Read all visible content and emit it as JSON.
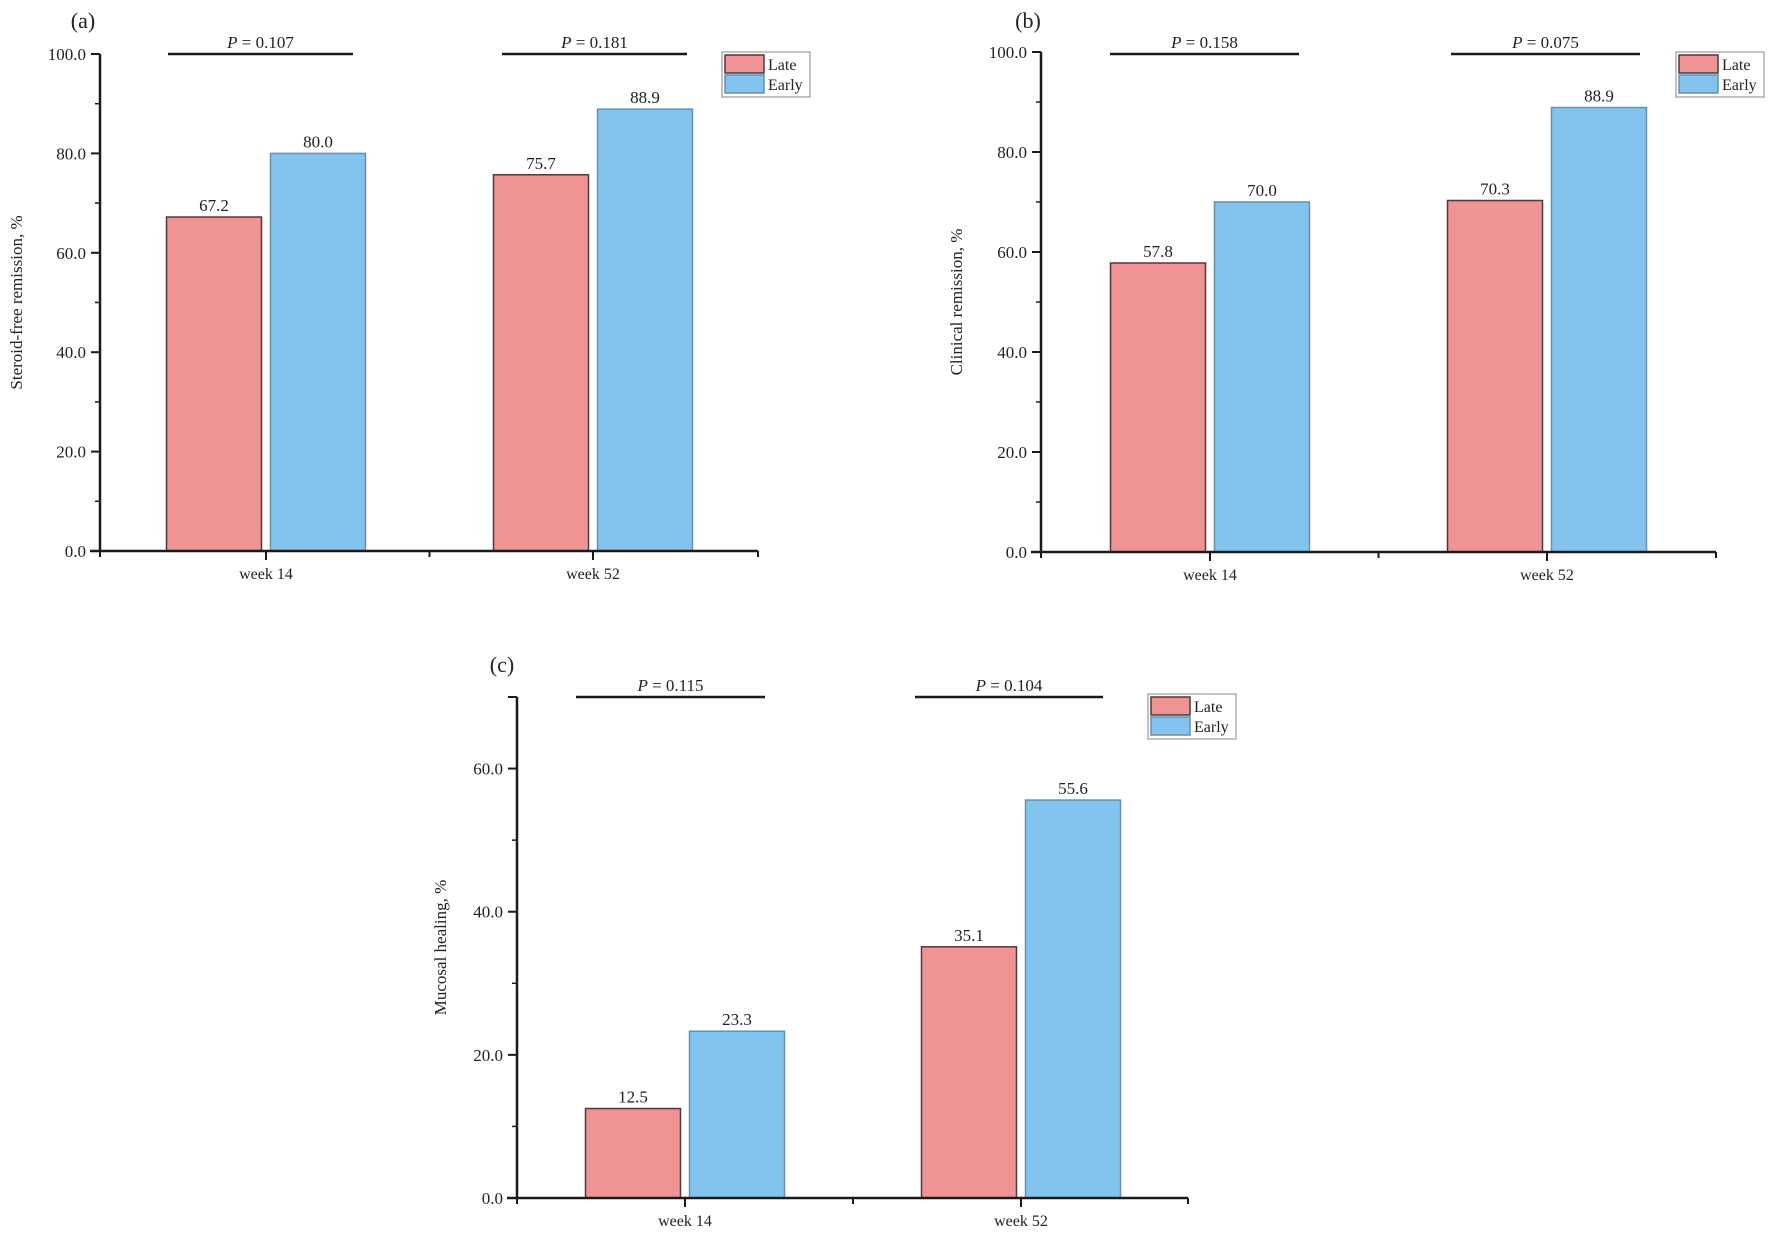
{
  "colors": {
    "late": "#F09394",
    "early": "#82C4EE",
    "late_border": "#4a3a3a",
    "early_border": "#6a8fa8",
    "axis": "#1a1a1a"
  },
  "legend": {
    "items": [
      "Late",
      "Early"
    ]
  },
  "chart_data": [
    {
      "type": "bar",
      "panel": "(a)",
      "title": "",
      "xlabel": "",
      "ylabel": "Steroid-free remission, %",
      "ylim": [
        0,
        100
      ],
      "yticks": [
        "0.0",
        "20.0",
        "40.0",
        "60.0",
        "80.0",
        "100.0"
      ],
      "ytick_values": [
        0,
        20,
        40,
        60,
        80,
        100
      ],
      "categories": [
        "week 14",
        "week 52"
      ],
      "series": [
        {
          "name": "Late",
          "values": [
            67.2,
            75.7
          ],
          "labels": [
            "67.2",
            "75.7"
          ]
        },
        {
          "name": "Early",
          "values": [
            80.0,
            88.9
          ],
          "labels": [
            "80.0",
            "88.9"
          ]
        }
      ],
      "annotations": [
        "P = 0.107",
        "P = 0.181"
      ],
      "p_values": [
        {
          "prefix": "P",
          "text": " = 0.107"
        },
        {
          "prefix": "P",
          "text": " = 0.181"
        }
      ],
      "legend_position": "top-right",
      "grid": false
    },
    {
      "type": "bar",
      "panel": "(b)",
      "title": "",
      "xlabel": "",
      "ylabel": "Clinical remission, %",
      "ylim": [
        0,
        100
      ],
      "yticks": [
        "0.0",
        "20.0",
        "40.0",
        "60.0",
        "80.0",
        "100.0"
      ],
      "ytick_values": [
        0,
        20,
        40,
        60,
        80,
        100
      ],
      "categories": [
        "week 14",
        "week 52"
      ],
      "series": [
        {
          "name": "Late",
          "values": [
            57.8,
            70.3
          ],
          "labels": [
            "57.8",
            "70.3"
          ]
        },
        {
          "name": "Early",
          "values": [
            70.0,
            88.9
          ],
          "labels": [
            "70.0",
            "88.9"
          ]
        }
      ],
      "annotations": [
        "P = 0.158",
        "P = 0.075"
      ],
      "p_values": [
        {
          "prefix": "P",
          "text": " = 0.158"
        },
        {
          "prefix": "P",
          "text": " = 0.075"
        }
      ],
      "legend_position": "top-right",
      "grid": false
    },
    {
      "type": "bar",
      "panel": "(c)",
      "title": "",
      "xlabel": "",
      "ylabel": "Mucosal healing, %",
      "ylim": [
        0,
        70
      ],
      "yticks": [
        "0.0",
        "20.0",
        "40.0",
        "60.0"
      ],
      "ytick_values": [
        0,
        20,
        40,
        60
      ],
      "categories": [
        "week 14",
        "week 52"
      ],
      "series": [
        {
          "name": "Late",
          "values": [
            12.5,
            35.1
          ],
          "labels": [
            "12.5",
            "35.1"
          ]
        },
        {
          "name": "Early",
          "values": [
            23.3,
            55.6
          ],
          "labels": [
            "23.3",
            "55.6"
          ]
        }
      ],
      "annotations": [
        "P = 0.115",
        "P = 0.104"
      ],
      "p_values": [
        {
          "prefix": "P",
          "text": " = 0.115"
        },
        {
          "prefix": "P",
          "text": " = 0.104"
        }
      ],
      "legend_position": "top-right",
      "grid": false
    }
  ]
}
